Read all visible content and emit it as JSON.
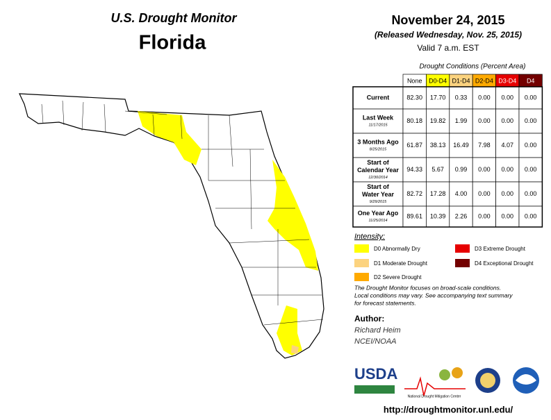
{
  "header": {
    "title": "U.S. Drought Monitor",
    "state": "Florida",
    "date": "November 24, 2015",
    "released": "(Released Wednesday, Nov. 25, 2015)",
    "valid": "Valid 7 a.m. EST"
  },
  "table": {
    "title": "Drought Conditions (Percent Area)",
    "columns": [
      {
        "label": "None",
        "color": "#ffffff",
        "text": "#000000"
      },
      {
        "label": "D0-D4",
        "color": "#ffff00",
        "text": "#000000"
      },
      {
        "label": "D1-D4",
        "color": "#fcd37f",
        "text": "#000000"
      },
      {
        "label": "D2-D4",
        "color": "#ffaa00",
        "text": "#000000"
      },
      {
        "label": "D3-D4",
        "color": "#e60000",
        "text": "#ffffff"
      },
      {
        "label": "D4",
        "color": "#730000",
        "text": "#ffffff"
      }
    ],
    "rows": [
      {
        "label": [
          "Current"
        ],
        "values": [
          "82.30",
          "17.70",
          "0.33",
          "0.00",
          "0.00",
          "0.00"
        ]
      },
      {
        "label": [
          "Last Week"
        ],
        "date": "11/17/2015",
        "values": [
          "80.18",
          "19.82",
          "1.99",
          "0.00",
          "0.00",
          "0.00"
        ]
      },
      {
        "label": [
          "3 Months Ago"
        ],
        "date": "8/25/2015",
        "values": [
          "61.87",
          "38.13",
          "16.49",
          "7.98",
          "4.07",
          "0.00"
        ]
      },
      {
        "label": [
          "Start of",
          "Calendar Year"
        ],
        "date": "12/30/2014",
        "values": [
          "94.33",
          "5.67",
          "0.99",
          "0.00",
          "0.00",
          "0.00"
        ]
      },
      {
        "label": [
          "Start of",
          "Water Year"
        ],
        "date": "9/29/2015",
        "values": [
          "82.72",
          "17.28",
          "4.00",
          "0.00",
          "0.00",
          "0.00"
        ]
      },
      {
        "label": [
          "One Year Ago"
        ],
        "date": "11/25/2014",
        "values": [
          "89.61",
          "10.39",
          "2.26",
          "0.00",
          "0.00",
          "0.00"
        ]
      }
    ]
  },
  "legend": {
    "title": "Intensity:",
    "items": [
      {
        "label": "D0 Abnormally Dry",
        "color": "#ffff00"
      },
      {
        "label": "D1 Moderate Drought",
        "color": "#fcd37f"
      },
      {
        "label": "D2 Severe Drought",
        "color": "#ffaa00"
      },
      {
        "label": "D3 Extreme Drought",
        "color": "#e60000"
      },
      {
        "label": "D4 Exceptional Drought",
        "color": "#730000"
      }
    ]
  },
  "note": [
    "The Drought Monitor focuses on broad-scale conditions.",
    "Local conditions may vary. See accompanying text summary",
    "for forecast statements."
  ],
  "author": {
    "title": "Author:",
    "lines": [
      "Richard Heim",
      "NCEI/NOAA"
    ]
  },
  "logos": {
    "usda": "USDA",
    "ndmc": "National Drought Mitigation Center"
  },
  "url": "http://droughtmonitor.unl.edu/"
}
